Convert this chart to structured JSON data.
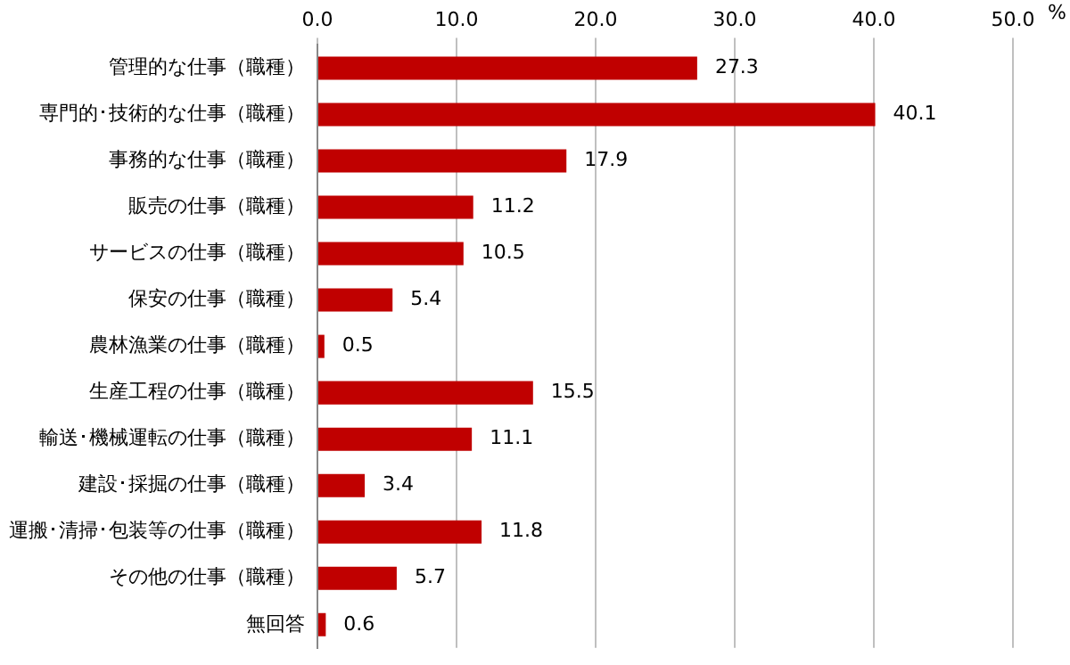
{
  "chart_data": {
    "type": "bar",
    "orientation": "horizontal",
    "xlabel": "%",
    "categories": [
      "管理的な仕事（職種）",
      "専門的･技術的な仕事（職種）",
      "事務的な仕事（職種）",
      "販売の仕事（職種）",
      "サービスの仕事（職種）",
      "保安の仕事（職種）",
      "農林漁業の仕事（職種）",
      "生産工程の仕事（職種）",
      "輸送･機械運転の仕事（職種）",
      "建設･採掘の仕事（職種）",
      "運搬･清掃･包装等の仕事（職種）",
      "その他の仕事（職種）",
      "無回答"
    ],
    "values": [
      27.3,
      40.1,
      17.9,
      11.2,
      10.5,
      5.4,
      0.5,
      15.5,
      11.1,
      3.4,
      11.8,
      5.7,
      0.6
    ],
    "color": "#c00000",
    "xlim": [
      0,
      50
    ],
    "xticks": [
      {
        "value": 0,
        "label": "0.0"
      },
      {
        "value": 10,
        "label": "10.0"
      },
      {
        "value": 20,
        "label": "20.0"
      },
      {
        "value": 30,
        "label": "30.0"
      },
      {
        "value": 40,
        "label": "40.0"
      },
      {
        "value": 50,
        "label": "50.0"
      }
    ],
    "grid": "x",
    "data_labels": true,
    "legend": false
  }
}
